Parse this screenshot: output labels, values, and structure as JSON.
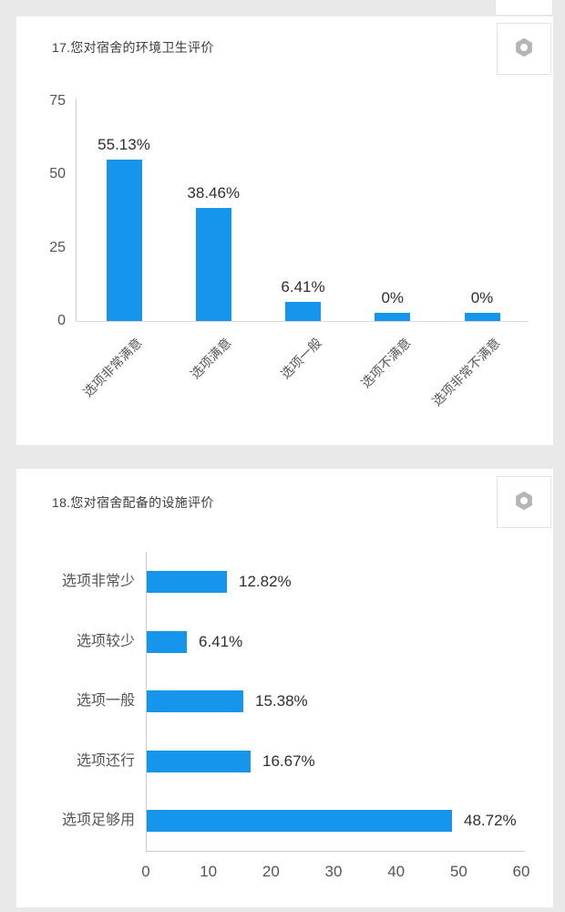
{
  "page": {
    "background": "#e9e9e9",
    "card_background": "#ffffff",
    "accent_blue": "#1596ec",
    "axis_color": "#cccccc"
  },
  "chart_data": [
    {
      "type": "bar",
      "orientation": "vertical",
      "title": "17.您对宿舍的环境卫生评价",
      "categories": [
        "选项非常满意",
        "选项满意",
        "选项一般",
        "选项不满意",
        "选项非常不满意"
      ],
      "values": [
        55.13,
        38.46,
        6.41,
        0,
        0
      ],
      "value_labels": [
        "55.13%",
        "38.46%",
        "6.41%",
        "0%",
        "0%"
      ],
      "y_ticks": [
        75,
        50,
        25,
        0
      ],
      "ylim": [
        0,
        75
      ],
      "xlabel": "",
      "ylabel": "",
      "grid": false,
      "legend": "none",
      "bar_color": "#1596ec",
      "gear_icon": "gear-icon"
    },
    {
      "type": "bar",
      "orientation": "horizontal",
      "title": "18.您对宿舍配备的设施评价",
      "categories": [
        "选项非常少",
        "选项较少",
        "选项一般",
        "选项还行",
        "选项足够用"
      ],
      "values": [
        12.82,
        6.41,
        15.38,
        16.67,
        48.72
      ],
      "value_labels": [
        "12.82%",
        "6.41%",
        "15.38%",
        "16.67%",
        "48.72%"
      ],
      "x_ticks": [
        0,
        10,
        20,
        30,
        40,
        50,
        60
      ],
      "xlim": [
        0,
        60
      ],
      "xlabel": "",
      "ylabel": "",
      "grid": false,
      "legend": "none",
      "bar_color": "#1596ec",
      "gear_icon": "gear-icon"
    }
  ]
}
